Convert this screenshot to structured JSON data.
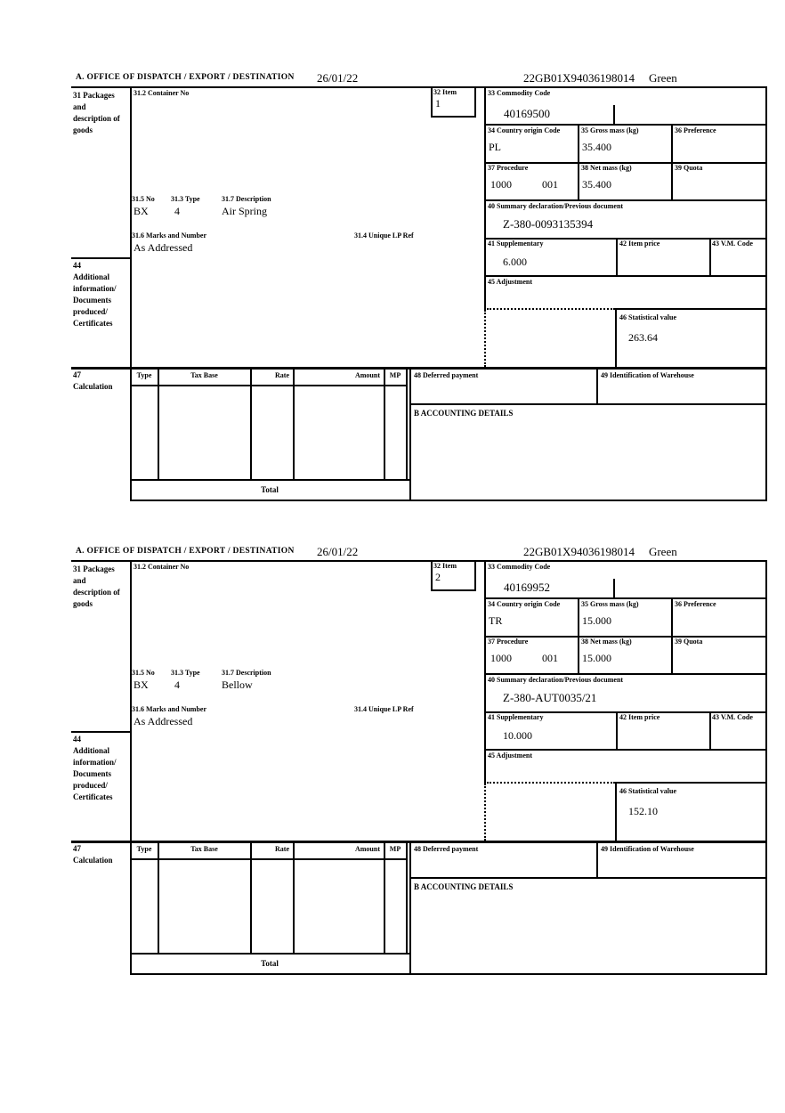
{
  "form": {
    "labels": {
      "section": "A.  OFFICE OF DISPATCH / EXPORT / DESTINATION",
      "b31": "31 Packages and description of goods",
      "b31_2": "31.2 Container No",
      "b31_5": "31.5 No",
      "b31_3": "31.3 Type",
      "b31_7": "31.7 Description",
      "b31_6": "31.6 Marks and Number",
      "b31_4": "31.4 Unique LP Ref",
      "b32": "32 Item",
      "b33": "33 Commodity Code",
      "b34": "34 Country origin Code",
      "b35": "35 Gross mass (kg)",
      "b36": "36 Preference",
      "b37": "37 Procedure",
      "b38": "38 Net mass (kg)",
      "b39": "39 Quota",
      "b40": "40 Summary declaration/Previous document",
      "b41": "41 Supplementary",
      "b42": "42 Item price",
      "b43": "43 V.M. Code",
      "b44": "44 Additional information/ Documents produced/ Certificates",
      "b45": "45 Adjustment",
      "b46": "46 Statistical value",
      "b47": "47 Calculation",
      "b48": "48 Deferred payment",
      "b49": "49 Identification of Warehouse",
      "accounting": "B ACCOUNTING DETAILS",
      "col_type": "Type",
      "col_taxbase": "Tax Base",
      "col_rate": "Rate",
      "col_amount": "Amount",
      "col_mp": "MP",
      "total": "Total"
    },
    "blocks": [
      {
        "date": "26/01/22",
        "entry_no": "22GB01X94036198014",
        "route": "Green",
        "item": "1",
        "commodity_code": "40169500",
        "origin_country": "PL",
        "gross_mass": "35.400",
        "procedure": "1000",
        "procedure_code": "001",
        "net_mass": "35.400",
        "previous_document": "Z-380-0093135394",
        "supplementary": "6.000",
        "statistical_value": "263.64",
        "package_no": "BX",
        "package_type": "4",
        "description": "Air Spring",
        "marks": "As Addressed"
      },
      {
        "date": "26/01/22",
        "entry_no": "22GB01X94036198014",
        "route": "Green",
        "item": "2",
        "commodity_code": "40169952",
        "origin_country": "TR",
        "gross_mass": "15.000",
        "procedure": "1000",
        "procedure_code": "001",
        "net_mass": "15.000",
        "previous_document": "Z-380-AUT0035/21",
        "supplementary": "10.000",
        "statistical_value": "152.10",
        "package_no": "BX",
        "package_type": "4",
        "description": "Bellow",
        "marks": "As Addressed"
      }
    ]
  }
}
